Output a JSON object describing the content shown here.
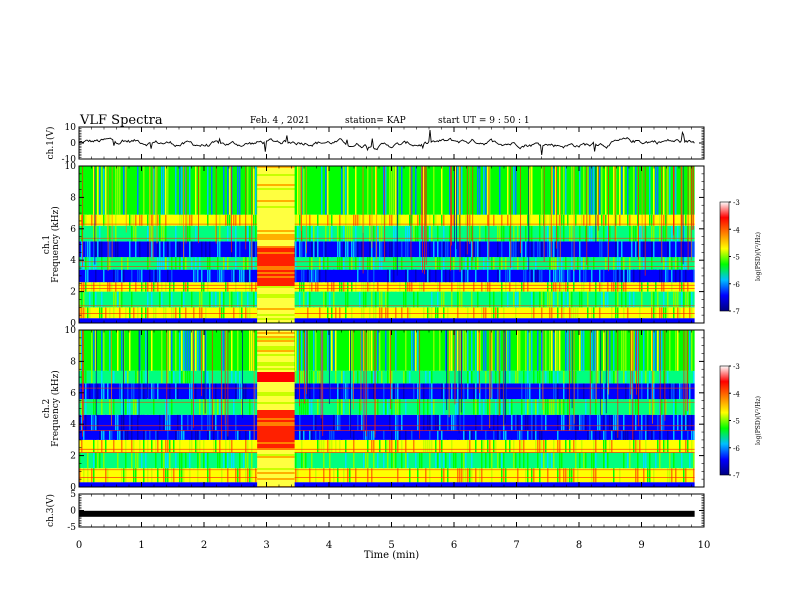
{
  "header": {
    "title": "VLF Spectra",
    "date": "Feb. 4 , 2021",
    "station": "station= KAP",
    "start": "start  UT =   9 : 50 : 1"
  },
  "colorbar": {
    "label": "log(PSD)(V²/Hz)",
    "ticks": [
      "-3",
      "-4",
      "-5",
      "-6",
      "-7"
    ],
    "colors": [
      "#00007f",
      "#0000ff",
      "#00bfff",
      "#00ff00",
      "#ffff00",
      "#ff7f00",
      "#ff0000",
      "#ffffff"
    ]
  },
  "chart_data": [
    {
      "type": "line",
      "ylabel": "ch.1(V)",
      "ylim": [
        -10,
        10
      ],
      "yticks": [
        "10",
        "0",
        "-10"
      ],
      "xlim": [
        0,
        10
      ],
      "mean_value": 0,
      "approx_range": [
        -5,
        5
      ],
      "note_series": "noisy time series around 0 V"
    },
    {
      "type": "heatmap",
      "ylabel": "ch.1\nFrequency (kHz)",
      "ylim": [
        0,
        10
      ],
      "yticks": [
        "0",
        "2",
        "4",
        "6",
        "8",
        "10"
      ],
      "xlim": [
        0,
        10
      ],
      "burst_interval_min": [
        2.85,
        3.45
      ],
      "bands_khz": [
        {
          "range": [
            0.3,
            1.0
          ],
          "level": "high"
        },
        {
          "range": [
            1.0,
            2.0
          ],
          "level": "mid"
        },
        {
          "range": [
            2.0,
            2.6
          ],
          "level": "high"
        },
        {
          "range": [
            2.6,
            3.4
          ],
          "level": "low"
        },
        {
          "range": [
            3.4,
            4.2
          ],
          "level": "mid"
        },
        {
          "range": [
            4.2,
            5.2
          ],
          "level": "low"
        },
        {
          "range": [
            5.2,
            6.2
          ],
          "level": "mid"
        },
        {
          "range": [
            6.2,
            6.9
          ],
          "level": "high"
        },
        {
          "range": [
            6.9,
            10.0
          ],
          "level": "mixed"
        }
      ]
    },
    {
      "type": "heatmap",
      "ylabel": "ch.2\nFrequency (kHz)",
      "ylim": [
        0,
        10
      ],
      "yticks": [
        "0",
        "2",
        "4",
        "6",
        "8",
        "10"
      ],
      "xlim": [
        0,
        10
      ],
      "burst_interval_min": [
        2.85,
        3.45
      ],
      "bands_khz": [
        {
          "range": [
            0.3,
            1.2
          ],
          "level": "high"
        },
        {
          "range": [
            1.2,
            2.2
          ],
          "level": "mid"
        },
        {
          "range": [
            2.2,
            3.0
          ],
          "level": "high"
        },
        {
          "range": [
            3.0,
            3.6
          ],
          "level": "low"
        },
        {
          "range": [
            3.6,
            4.6
          ],
          "level": "low"
        },
        {
          "range": [
            4.6,
            5.6
          ],
          "level": "mid"
        },
        {
          "range": [
            5.6,
            6.6
          ],
          "level": "low"
        },
        {
          "range": [
            6.6,
            7.4
          ],
          "level": "mid"
        },
        {
          "range": [
            7.4,
            10.0
          ],
          "level": "mixed"
        }
      ]
    },
    {
      "type": "line",
      "ylabel": "ch.3(V)",
      "ylim": [
        -5,
        5
      ],
      "yticks": [
        "5",
        "0",
        "-5"
      ],
      "xlim": [
        0,
        10
      ],
      "constant_value": -1,
      "xlabel": "Time  (min)",
      "xticks": [
        "0",
        "1",
        "2",
        "3",
        "4",
        "5",
        "6",
        "7",
        "8",
        "9",
        "10"
      ]
    }
  ]
}
